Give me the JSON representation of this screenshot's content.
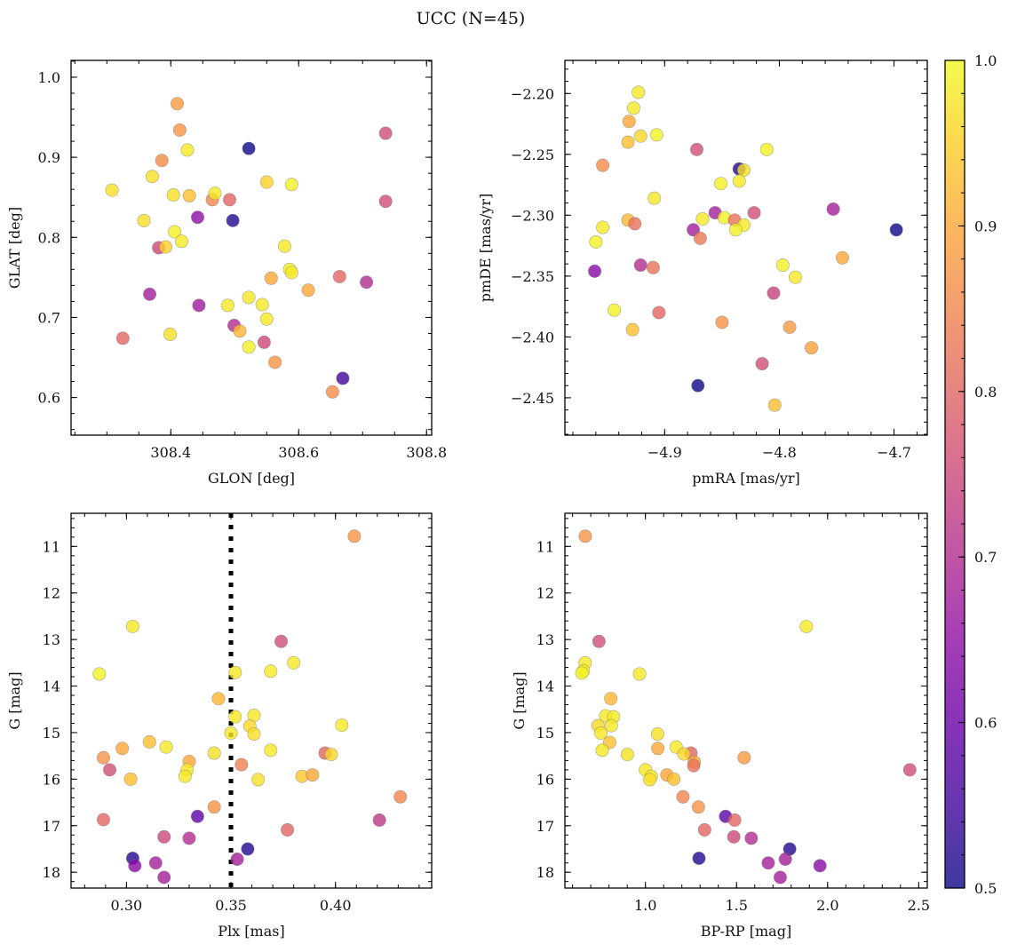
{
  "title": "UCC (N=45)",
  "colorbar": {
    "vmin": 0.5,
    "vmax": 1.0,
    "colormap": "plasma",
    "alpha": 0.8,
    "ticks": [
      0.5,
      0.6,
      0.7,
      0.8,
      0.9,
      1.0
    ],
    "tick_labels": [
      "0.5",
      "0.6",
      "0.7",
      "0.8",
      "0.9",
      "1.0"
    ],
    "minor_step": 0.02
  },
  "chart_data": [
    {
      "type": "scatter",
      "id": "glon-glat",
      "xlabel": "GLON [deg]",
      "ylabel": "GLAT [deg]",
      "xlim": [
        308.244,
        308.808
      ],
      "ylim": [
        0.553,
        1.021
      ],
      "y_inverted": false,
      "xticks": [
        308.4,
        308.6,
        308.8
      ],
      "xtick_labels": [
        "308.4",
        "308.6",
        "308.8"
      ],
      "x_minor_step": 0.05,
      "yticks": [
        0.6,
        0.7,
        0.8,
        0.9,
        1.0
      ],
      "ytick_labels": [
        "0.6",
        "0.7",
        "0.8",
        "0.9",
        "1.0"
      ],
      "y_minor_step": 0.02,
      "points": [
        [
          308.41,
          0.967,
          0.88
        ],
        [
          308.414,
          0.934,
          0.87
        ],
        [
          308.426,
          0.909,
          0.98
        ],
        [
          308.386,
          0.896,
          0.86
        ],
        [
          308.522,
          0.911,
          0.5
        ],
        [
          308.308,
          0.859,
          0.97
        ],
        [
          308.371,
          0.876,
          0.97
        ],
        [
          308.404,
          0.853,
          0.97
        ],
        [
          308.429,
          0.852,
          0.93
        ],
        [
          308.465,
          0.847,
          0.85
        ],
        [
          308.469,
          0.855,
          0.98
        ],
        [
          308.492,
          0.847,
          0.8
        ],
        [
          308.55,
          0.869,
          0.95
        ],
        [
          308.589,
          0.866,
          0.99
        ],
        [
          308.442,
          0.825,
          0.65
        ],
        [
          308.497,
          0.821,
          0.52
        ],
        [
          308.358,
          0.821,
          0.97
        ],
        [
          308.406,
          0.807,
          0.99
        ],
        [
          308.417,
          0.795,
          0.98
        ],
        [
          308.381,
          0.787,
          0.75
        ],
        [
          308.392,
          0.788,
          0.95
        ],
        [
          308.578,
          0.789,
          0.98
        ],
        [
          308.586,
          0.76,
          0.99
        ],
        [
          308.589,
          0.756,
          0.98
        ],
        [
          308.557,
          0.749,
          0.9
        ],
        [
          308.664,
          0.751,
          0.8
        ],
        [
          308.706,
          0.744,
          0.7
        ],
        [
          308.615,
          0.734,
          0.9
        ],
        [
          308.367,
          0.729,
          0.68
        ],
        [
          308.522,
          0.725,
          0.98
        ],
        [
          308.543,
          0.716,
          0.98
        ],
        [
          308.489,
          0.715,
          0.98
        ],
        [
          308.444,
          0.715,
          0.67
        ],
        [
          308.55,
          0.698,
          0.98
        ],
        [
          308.499,
          0.69,
          0.7
        ],
        [
          308.508,
          0.683,
          0.92
        ],
        [
          308.325,
          0.674,
          0.8
        ],
        [
          308.399,
          0.679,
          0.97
        ],
        [
          308.546,
          0.669,
          0.75
        ],
        [
          308.522,
          0.663,
          0.99
        ],
        [
          308.563,
          0.644,
          0.87
        ],
        [
          308.669,
          0.624,
          0.55
        ],
        [
          308.653,
          0.607,
          0.86
        ],
        [
          308.736,
          0.93,
          0.76
        ],
        [
          308.736,
          0.845,
          0.76
        ]
      ]
    },
    {
      "type": "scatter",
      "id": "pmra-pmde",
      "xlabel": "pmRA [mas/yr]",
      "ylabel": "pmDE [mas/yr]",
      "xlim": [
        -4.987,
        -4.671
      ],
      "ylim": [
        -2.4807,
        -2.1728
      ],
      "y_inverted": false,
      "xticks": [
        -4.9,
        -4.8,
        -4.7
      ],
      "xtick_labels": [
        "−4.9",
        "−4.8",
        "−4.7"
      ],
      "x_minor_step": 0.02,
      "yticks": [
        -2.45,
        -2.4,
        -2.35,
        -2.3,
        -2.25,
        -2.2
      ],
      "ytick_labels": [
        "−2.45",
        "−2.40",
        "−2.35",
        "−2.30",
        "−2.25",
        "−2.20"
      ],
      "y_minor_step": 0.01,
      "points": [
        [
          -4.923,
          -2.199,
          0.98
        ],
        [
          -4.927,
          -2.212,
          0.98
        ],
        [
          -4.931,
          -2.223,
          0.9
        ],
        [
          -4.921,
          -2.235,
          0.96
        ],
        [
          -4.907,
          -2.234,
          0.99
        ],
        [
          -4.932,
          -2.24,
          0.93
        ],
        [
          -4.872,
          -2.246,
          0.76
        ],
        [
          -4.811,
          -2.246,
          0.99
        ],
        [
          -4.954,
          -2.259,
          0.86
        ],
        [
          -4.835,
          -2.262,
          0.52
        ],
        [
          -4.831,
          -2.263,
          0.97
        ],
        [
          -4.835,
          -2.272,
          0.98
        ],
        [
          -4.851,
          -2.274,
          0.99
        ],
        [
          -4.909,
          -2.286,
          0.98
        ],
        [
          -4.753,
          -2.295,
          0.68
        ],
        [
          -4.856,
          -2.298,
          0.68
        ],
        [
          -4.822,
          -2.298,
          0.76
        ],
        [
          -4.932,
          -2.304,
          0.92
        ],
        [
          -4.848,
          -2.302,
          0.99
        ],
        [
          -4.867,
          -2.303,
          0.98
        ],
        [
          -4.926,
          -2.307,
          0.82
        ],
        [
          -4.839,
          -2.304,
          0.82
        ],
        [
          -4.831,
          -2.308,
          0.98
        ],
        [
          -4.954,
          -2.31,
          0.98
        ],
        [
          -4.838,
          -2.312,
          0.99
        ],
        [
          -4.698,
          -2.312,
          0.5
        ],
        [
          -4.875,
          -2.312,
          0.68
        ],
        [
          -4.869,
          -2.319,
          0.83
        ],
        [
          -4.96,
          -2.322,
          0.99
        ],
        [
          -4.745,
          -2.335,
          0.9
        ],
        [
          -4.921,
          -2.341,
          0.7
        ],
        [
          -4.91,
          -2.343,
          0.82
        ],
        [
          -4.961,
          -2.346,
          0.64
        ],
        [
          -4.797,
          -2.341,
          0.99
        ],
        [
          -4.786,
          -2.351,
          0.98
        ],
        [
          -4.805,
          -2.364,
          0.74
        ],
        [
          -4.944,
          -2.378,
          0.99
        ],
        [
          -4.905,
          -2.38,
          0.8
        ],
        [
          -4.85,
          -2.388,
          0.87
        ],
        [
          -4.928,
          -2.394,
          0.93
        ],
        [
          -4.791,
          -2.392,
          0.88
        ],
        [
          -4.772,
          -2.409,
          0.89
        ],
        [
          -4.815,
          -2.422,
          0.76
        ],
        [
          -4.871,
          -2.44,
          0.5
        ],
        [
          -4.804,
          -2.456,
          0.93
        ]
      ]
    },
    {
      "type": "scatter",
      "id": "plx-g",
      "xlabel": "Plx [mas]",
      "ylabel": "G [mag]",
      "xlim": [
        0.2735,
        0.446
      ],
      "ylim": [
        10.288,
        18.34
      ],
      "y_inverted": true,
      "xticks": [
        0.3,
        0.35,
        0.4
      ],
      "xtick_labels": [
        "0.30",
        "0.35",
        "0.40"
      ],
      "x_minor_step": 0.01,
      "yticks": [
        11,
        12,
        13,
        14,
        15,
        16,
        17,
        18
      ],
      "ytick_labels": [
        "11",
        "12",
        "13",
        "14",
        "15",
        "16",
        "17",
        "18"
      ],
      "y_minor_step": 0.2,
      "vline": {
        "x": 0.35,
        "style": "dotted",
        "color": "#000000"
      },
      "points": [
        [
          0.409,
          10.78,
          0.87
        ],
        [
          0.303,
          12.72,
          0.98
        ],
        [
          0.374,
          13.04,
          0.76
        ],
        [
          0.38,
          13.5,
          0.98
        ],
        [
          0.287,
          13.74,
          0.99
        ],
        [
          0.352,
          13.71,
          0.98
        ],
        [
          0.369,
          13.68,
          0.98
        ],
        [
          0.344,
          14.27,
          0.92
        ],
        [
          0.352,
          14.66,
          0.98
        ],
        [
          0.361,
          14.63,
          0.98
        ],
        [
          0.359,
          14.86,
          0.96
        ],
        [
          0.403,
          14.84,
          0.98
        ],
        [
          0.35,
          15.01,
          0.98
        ],
        [
          0.361,
          15.03,
          0.97
        ],
        [
          0.311,
          15.2,
          0.93
        ],
        [
          0.298,
          15.34,
          0.9
        ],
        [
          0.319,
          15.31,
          0.98
        ],
        [
          0.289,
          15.54,
          0.87
        ],
        [
          0.342,
          15.44,
          0.97
        ],
        [
          0.369,
          15.38,
          0.98
        ],
        [
          0.395,
          15.44,
          0.8
        ],
        [
          0.398,
          15.47,
          0.96
        ],
        [
          0.33,
          15.62,
          0.9
        ],
        [
          0.292,
          15.8,
          0.76
        ],
        [
          0.329,
          15.8,
          0.98
        ],
        [
          0.355,
          15.69,
          0.84
        ],
        [
          0.328,
          15.94,
          0.98
        ],
        [
          0.302,
          16.0,
          0.93
        ],
        [
          0.363,
          16.01,
          0.97
        ],
        [
          0.384,
          15.94,
          0.94
        ],
        [
          0.389,
          15.91,
          0.9
        ],
        [
          0.431,
          16.38,
          0.85
        ],
        [
          0.342,
          16.6,
          0.87
        ],
        [
          0.289,
          16.87,
          0.8
        ],
        [
          0.334,
          16.8,
          0.58
        ],
        [
          0.421,
          16.88,
          0.72
        ],
        [
          0.377,
          17.09,
          0.8
        ],
        [
          0.318,
          17.24,
          0.75
        ],
        [
          0.33,
          17.27,
          0.7
        ],
        [
          0.358,
          17.5,
          0.52
        ],
        [
          0.303,
          17.7,
          0.52
        ],
        [
          0.353,
          17.72,
          0.68
        ],
        [
          0.304,
          17.86,
          0.64
        ],
        [
          0.314,
          17.8,
          0.68
        ],
        [
          0.318,
          18.11,
          0.68
        ]
      ]
    },
    {
      "type": "scatter",
      "id": "bprp-g",
      "xlabel": "BP-RP [mag]",
      "ylabel": "G [mag]",
      "xlim": [
        0.558,
        2.547
      ],
      "ylim": [
        10.288,
        18.34
      ],
      "y_inverted": true,
      "xticks": [
        1.0,
        1.5,
        2.0,
        2.5
      ],
      "xtick_labels": [
        "1.0",
        "1.5",
        "2.0",
        "2.5"
      ],
      "x_minor_step": 0.1,
      "yticks": [
        11,
        12,
        13,
        14,
        15,
        16,
        17,
        18
      ],
      "ytick_labels": [
        "11",
        "12",
        "13",
        "14",
        "15",
        "16",
        "17",
        "18"
      ],
      "y_minor_step": 0.2,
      "points": [
        [
          0.67,
          10.78,
          0.87
        ],
        [
          1.883,
          12.72,
          0.98
        ],
        [
          0.745,
          13.04,
          0.76
        ],
        [
          0.669,
          13.5,
          0.98
        ],
        [
          0.659,
          13.67,
          0.98
        ],
        [
          0.651,
          13.72,
          0.99
        ],
        [
          0.968,
          13.74,
          0.98
        ],
        [
          0.81,
          14.27,
          0.92
        ],
        [
          0.782,
          14.64,
          0.98
        ],
        [
          0.825,
          14.66,
          0.98
        ],
        [
          0.74,
          14.85,
          0.96
        ],
        [
          0.813,
          14.85,
          0.98
        ],
        [
          0.755,
          15.01,
          0.98
        ],
        [
          1.067,
          15.03,
          0.97
        ],
        [
          0.804,
          15.21,
          0.93
        ],
        [
          1.068,
          15.34,
          0.9
        ],
        [
          0.763,
          15.38,
          0.98
        ],
        [
          0.901,
          15.47,
          0.97
        ],
        [
          1.169,
          15.31,
          0.98
        ],
        [
          1.25,
          15.44,
          0.8
        ],
        [
          1.211,
          15.46,
          0.96
        ],
        [
          1.542,
          15.54,
          0.88
        ],
        [
          1.268,
          15.63,
          0.9
        ],
        [
          1.265,
          15.71,
          0.82
        ],
        [
          2.451,
          15.8,
          0.76
        ],
        [
          1.0,
          15.8,
          0.98
        ],
        [
          1.032,
          15.94,
          0.98
        ],
        [
          1.024,
          16.01,
          0.97
        ],
        [
          1.118,
          15.91,
          0.9
        ],
        [
          1.156,
          16.0,
          0.93
        ],
        [
          1.206,
          16.38,
          0.85
        ],
        [
          1.291,
          16.6,
          0.87
        ],
        [
          1.44,
          16.8,
          0.58
        ],
        [
          1.49,
          16.88,
          0.8
        ],
        [
          1.325,
          17.09,
          0.8
        ],
        [
          1.485,
          17.24,
          0.75
        ],
        [
          1.581,
          17.27,
          0.7
        ],
        [
          1.792,
          17.5,
          0.52
        ],
        [
          1.294,
          17.7,
          0.52
        ],
        [
          1.768,
          17.72,
          0.68
        ],
        [
          1.674,
          17.8,
          0.68
        ],
        [
          1.958,
          17.86,
          0.64
        ],
        [
          1.74,
          18.11,
          0.68
        ]
      ]
    }
  ]
}
